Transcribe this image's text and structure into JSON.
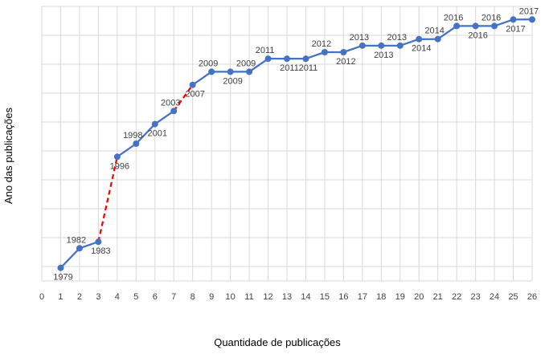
{
  "chart_data": {
    "type": "line",
    "title": "",
    "xlabel": "Quantidade de publicações",
    "ylabel": "Ano das publicações",
    "xlim": [
      0,
      26
    ],
    "ylim": [
      1977,
      2019
    ],
    "grid": true,
    "x_ticks": [
      "0",
      "1",
      "2",
      "3",
      "4",
      "5",
      "6",
      "7",
      "8",
      "9",
      "10",
      "11",
      "12",
      "13",
      "14",
      "15",
      "16",
      "17",
      "18",
      "19",
      "20",
      "21",
      "22",
      "23",
      "24",
      "25",
      "26"
    ],
    "series": [
      {
        "color": "#4472c4",
        "points": [
          {
            "x": 1,
            "y": 1979,
            "label": "1979",
            "label_pos": "below"
          },
          {
            "x": 2,
            "y": 1982,
            "label": "1982",
            "label_pos": "above"
          },
          {
            "x": 3,
            "y": 1983,
            "label": "1983",
            "label_pos": "below"
          },
          {
            "x": 4,
            "y": 1996,
            "label": "1996",
            "label_pos": "below"
          },
          {
            "x": 5,
            "y": 1998,
            "label": "1998",
            "label_pos": "above"
          },
          {
            "x": 6,
            "y": 2001,
            "label": "2001",
            "label_pos": "below"
          },
          {
            "x": 7,
            "y": 2003,
            "label": "2003",
            "label_pos": "above"
          },
          {
            "x": 8,
            "y": 2007,
            "label": "2007",
            "label_pos": "below"
          },
          {
            "x": 9,
            "y": 2009,
            "label": "2009",
            "label_pos": "above"
          },
          {
            "x": 10,
            "y": 2009,
            "label": "2009",
            "label_pos": "below"
          },
          {
            "x": 11,
            "y": 2009,
            "label": "2009",
            "label_pos": "above"
          },
          {
            "x": 12,
            "y": 2011,
            "label": "2011",
            "label_pos": "above"
          },
          {
            "x": 13,
            "y": 2011,
            "label": "2011",
            "label_pos": "below"
          },
          {
            "x": 14,
            "y": 2011,
            "label": "2011",
            "label_pos": "below"
          },
          {
            "x": 15,
            "y": 2012,
            "label": "2012",
            "label_pos": "above"
          },
          {
            "x": 16,
            "y": 2012,
            "label": "2012",
            "label_pos": "below"
          },
          {
            "x": 17,
            "y": 2013,
            "label": "2013",
            "label_pos": "above"
          },
          {
            "x": 18,
            "y": 2013,
            "label": "2013",
            "label_pos": "below"
          },
          {
            "x": 19,
            "y": 2013,
            "label": "2013",
            "label_pos": "above"
          },
          {
            "x": 20,
            "y": 2014,
            "label": "2014",
            "label_pos": "below"
          },
          {
            "x": 21,
            "y": 2014,
            "label": "2014",
            "label_pos": "above"
          },
          {
            "x": 22,
            "y": 2016,
            "label": "2016",
            "label_pos": "above"
          },
          {
            "x": 23,
            "y": 2016,
            "label": "2016",
            "label_pos": "below"
          },
          {
            "x": 24,
            "y": 2016,
            "label": "2016",
            "label_pos": "above"
          },
          {
            "x": 25,
            "y": 2017,
            "label": "2017",
            "label_pos": "below"
          },
          {
            "x": 26,
            "y": 2017,
            "label": "2017",
            "label_pos": "above"
          }
        ]
      }
    ],
    "dashed_segments": [
      {
        "from_x": 3,
        "to_x": 4,
        "color": "#ff0000"
      },
      {
        "from_x": 7,
        "to_x": 8,
        "color": "#ff0000"
      }
    ]
  }
}
